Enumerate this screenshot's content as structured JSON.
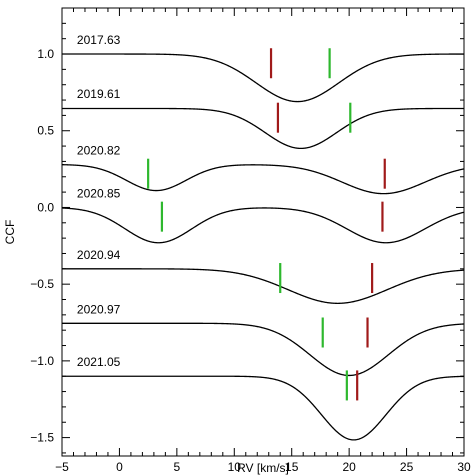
{
  "chart_data": {
    "type": "line",
    "xlabel": "RV [km/s]",
    "ylabel": "CCF",
    "xlim": [
      -5,
      30
    ],
    "ylim": [
      -1.62,
      1.3
    ],
    "x_ticks": [
      -5,
      0,
      5,
      10,
      15,
      20,
      25,
      30
    ],
    "x_tick_labels": [
      "−5",
      "0",
      "5",
      "10",
      "15",
      "20",
      "25",
      "30"
    ],
    "y_ticks": [
      -1.5,
      -1.0,
      -0.5,
      0.0,
      0.5,
      1.0
    ],
    "y_tick_labels": [
      "−1.5",
      "−1.0",
      "−0.5",
      "0.0",
      "0.5",
      "1.0"
    ],
    "colors": {
      "primary_marker": "#2eb82e",
      "secondary_marker": "#a01a1a",
      "line": "#000000"
    },
    "series": [
      {
        "name": "2017.63",
        "baseline": 1.0,
        "label_x": -3.7,
        "label_y": 1.065,
        "components": [
          {
            "center": 15.5,
            "depth": 0.31,
            "width": 3.6
          }
        ],
        "green_marker": 18.3,
        "red_marker": 13.2
      },
      {
        "name": "2019.61",
        "baseline": 0.645,
        "label_x": -3.7,
        "label_y": 0.715,
        "components": [
          {
            "center": 15.8,
            "depth": 0.26,
            "width": 3.1
          }
        ],
        "green_marker": 20.1,
        "red_marker": 13.8
      },
      {
        "name": "2020.82",
        "baseline": 0.28,
        "label_x": -3.7,
        "label_y": 0.345,
        "components": [
          {
            "center": 3.2,
            "depth": 0.17,
            "width": 2.6
          },
          {
            "center": 23.0,
            "depth": 0.19,
            "width": 3.6
          }
        ],
        "green_marker": 2.5,
        "red_marker": 23.1
      },
      {
        "name": "2020.85",
        "baseline": 0.0,
        "label_x": -3.7,
        "label_y": 0.065,
        "components": [
          {
            "center": 3.4,
            "depth": 0.23,
            "width": 2.9
          },
          {
            "center": 23.2,
            "depth": 0.23,
            "width": 3.4
          }
        ],
        "green_marker": 3.7,
        "red_marker": 22.9
      },
      {
        "name": "2020.94",
        "baseline": -0.4,
        "label_x": -3.7,
        "label_y": -0.335,
        "components": [
          {
            "center": 19.0,
            "depth": 0.225,
            "width": 4.3
          }
        ],
        "green_marker": 14.0,
        "red_marker": 22.0
      },
      {
        "name": "2020.97",
        "baseline": -0.755,
        "label_x": -3.7,
        "label_y": -0.69,
        "components": [
          {
            "center": 20.0,
            "depth": 0.34,
            "width": 3.4
          }
        ],
        "green_marker": 17.7,
        "red_marker": 21.6
      },
      {
        "name": "2021.05",
        "baseline": -1.1,
        "label_x": -3.7,
        "label_y": -1.035,
        "components": [
          {
            "center": 20.4,
            "depth": 0.415,
            "width": 2.8
          }
        ],
        "green_marker": 19.8,
        "red_marker": 20.7
      }
    ]
  }
}
